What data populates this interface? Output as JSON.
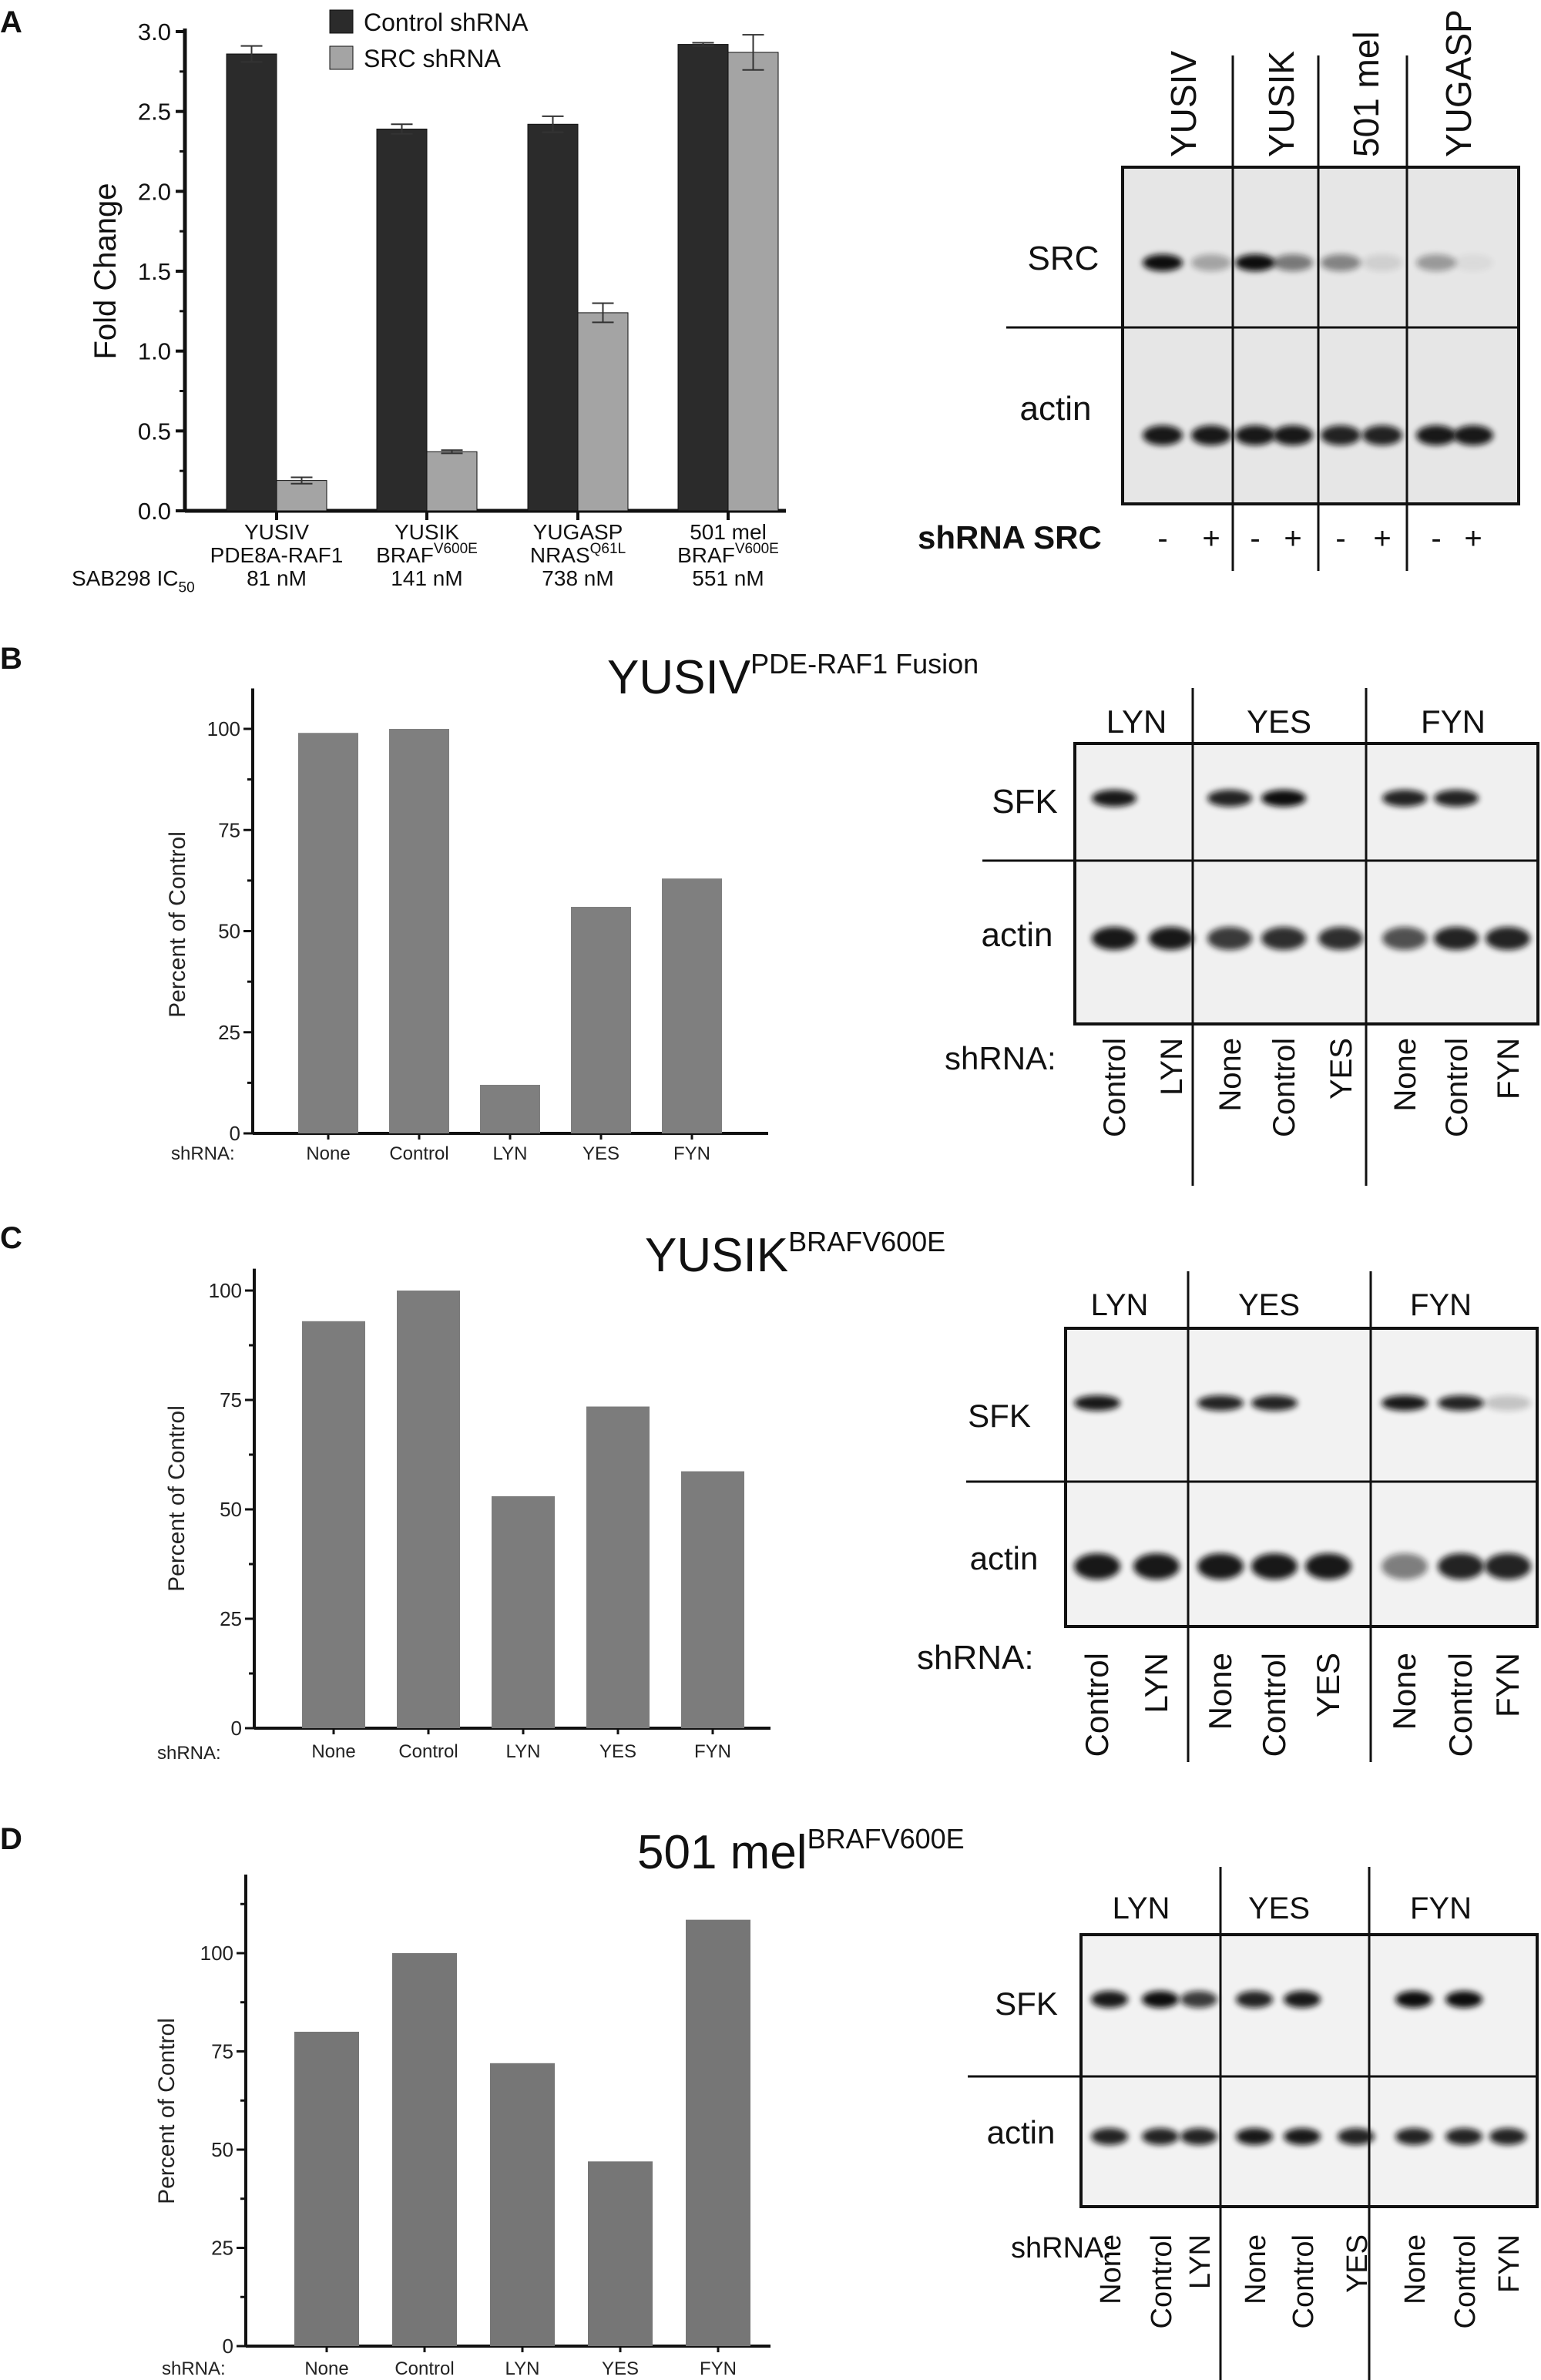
{
  "panel_labels": [
    "A",
    "B",
    "C",
    "D"
  ],
  "chart_data": [
    {
      "type": "bar",
      "panel": "A",
      "ylabel": "Fold Change",
      "ylim": [
        0,
        3.0
      ],
      "yticks": [
        "0.0",
        "0.5",
        "1.0",
        "1.5",
        "2.0",
        "2.5",
        "3.0"
      ],
      "grid": false,
      "legend_placement": "top",
      "categories": [
        {
          "line1": "YUSIV",
          "line2": "PDE8A-RAF1",
          "sup": "",
          "ic50": "81 nM"
        },
        {
          "line1": "YUSIK",
          "line2": "BRAF",
          "sup": "V600E",
          "ic50": "141 nM"
        },
        {
          "line1": "YUGASP",
          "line2": "NRAS",
          "sup": "Q61L",
          "ic50": "738 nM"
        },
        {
          "line1": "501 mel",
          "line2": "BRAF",
          "sup": "V600E",
          "ic50": "551 nM"
        }
      ],
      "row_label": {
        "text": "SAB298 IC",
        "sub": "50"
      },
      "series": [
        {
          "name": "Control shRNA",
          "color": "#2b2b2b",
          "values": [
            2.86,
            2.39,
            2.42,
            2.92
          ],
          "error": [
            0.05,
            0.03,
            0.05,
            0.01
          ]
        },
        {
          "name": "SRC shRNA",
          "color": "#a4a4a4",
          "values": [
            0.19,
            0.37,
            1.24,
            2.87
          ],
          "error": [
            0.02,
            0.01,
            0.06,
            0.11
          ]
        }
      ]
    },
    {
      "type": "bar",
      "panel": "B",
      "ylabel": "Percent of Control",
      "xprefix": "shRNA:",
      "ylim": [
        0,
        110
      ],
      "yticks": [
        "0",
        "25",
        "50",
        "75",
        "100"
      ],
      "categories": [
        "None",
        "Control",
        "LYN",
        "YES",
        "FYN"
      ],
      "values": [
        99,
        100,
        12,
        56,
        63
      ],
      "color": "#7f7f7f"
    },
    {
      "type": "bar",
      "panel": "C",
      "ylabel": "Percent of Control",
      "xprefix": "shRNA:",
      "ylim": [
        0,
        105
      ],
      "yticks": [
        "0",
        "25",
        "50",
        "75",
        "100"
      ],
      "categories": [
        "None",
        "Control",
        "LYN",
        "YES",
        "FYN"
      ],
      "values": [
        93,
        100,
        53,
        73.5,
        58.7
      ],
      "color": "#7c7c7c"
    },
    {
      "type": "bar",
      "panel": "D",
      "ylabel": "Percent of Control",
      "xprefix": "shRNA:",
      "ylim": [
        0,
        120
      ],
      "yticks": [
        "0",
        "25",
        "50",
        "75",
        "100"
      ],
      "categories": [
        "None",
        "Control",
        "LYN",
        "YES",
        "FYN"
      ],
      "values": [
        80,
        100,
        72,
        47,
        108.5
      ],
      "color": "#767676"
    }
  ],
  "titles": {
    "B": {
      "main": "YUSIV",
      "sup": "PDE-RAF1 Fusion"
    },
    "C": {
      "main": "YUSIK",
      "sup": "BRAFV600E"
    },
    "D": {
      "main": "501 mel",
      "sup": "BRAFV600E"
    }
  },
  "blots": {
    "A": {
      "columns": [
        "YUSIV",
        "YUSIK",
        "501 mel",
        "YUGASP"
      ],
      "rows": [
        "SRC",
        "actin"
      ],
      "condition_label": "shRNA SRC",
      "lanes": [
        "-",
        "+",
        "-",
        "+",
        "-",
        "+",
        "-",
        "+"
      ],
      "band_intensity": {
        "SRC": [
          1,
          0.3,
          1,
          0.5,
          0.45,
          0.1,
          0.35,
          0.05
        ],
        "actin": [
          0.95,
          0.95,
          0.95,
          0.95,
          0.9,
          0.9,
          0.95,
          0.95
        ]
      }
    },
    "B": {
      "columns": [
        "LYN",
        "YES",
        "FYN"
      ],
      "rows": [
        "SFK",
        "actin"
      ],
      "condition_label": "shRNA:",
      "lanes": [
        "Control",
        "LYN",
        "None",
        "Control",
        "YES",
        "None",
        "Control",
        "FYN"
      ],
      "band_intensity": {
        "SFK": [
          0.95,
          0,
          0.9,
          1,
          0,
          0.9,
          0.9,
          0
        ],
        "actin": [
          0.95,
          0.95,
          0.8,
          0.85,
          0.85,
          0.7,
          0.9,
          0.9
        ]
      }
    },
    "C": {
      "columns": [
        "LYN",
        "YES",
        "FYN"
      ],
      "rows": [
        "SFK",
        "actin"
      ],
      "condition_label": "shRNA:",
      "lanes": [
        "Control",
        "LYN",
        "None",
        "Control",
        "YES",
        "None",
        "Control",
        "FYN"
      ],
      "band_intensity": {
        "SFK": [
          0.95,
          0,
          0.9,
          0.9,
          0,
          0.95,
          0.9,
          0.2
        ],
        "actin": [
          0.95,
          0.95,
          0.95,
          0.95,
          0.95,
          0.5,
          0.9,
          0.9
        ]
      }
    },
    "D": {
      "columns": [
        "LYN",
        "YES",
        "FYN"
      ],
      "rows": [
        "SFK",
        "actin"
      ],
      "condition_label": "shRNA:",
      "lanes": [
        "None",
        "Control",
        "LYN",
        "None",
        "Control",
        "YES",
        "None",
        "Control",
        "FYN"
      ],
      "band_intensity": {
        "SFK": [
          0.95,
          1,
          0.8,
          0.9,
          0.95,
          0,
          1,
          1,
          0
        ],
        "actin": [
          0.9,
          0.9,
          0.9,
          0.95,
          0.95,
          0.9,
          0.9,
          0.9,
          0.9
        ]
      }
    }
  }
}
